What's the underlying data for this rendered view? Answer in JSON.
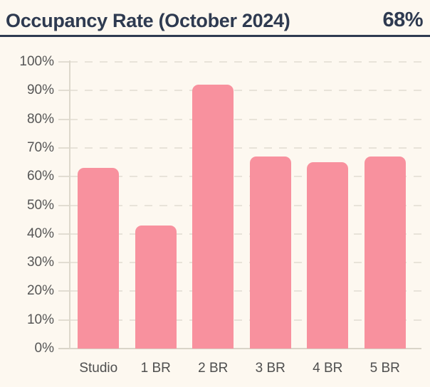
{
  "header": {
    "title": "Occupancy Rate (October 2024)",
    "value": "68%"
  },
  "colors": {
    "background": "#fdf8f0",
    "heading": "#2e3a50",
    "bar": "#f8919e",
    "grid": "#e8e3d9",
    "axis_line": "#ddd8cc",
    "axis_label": "#565656"
  },
  "chart_data": {
    "type": "bar",
    "title": "Occupancy Rate (October 2024)",
    "headline_value": "68%",
    "categories": [
      "Studio",
      "1 BR",
      "2 BR",
      "3 BR",
      "4 BR",
      "5 BR"
    ],
    "values": [
      63,
      43,
      92,
      67,
      65,
      67
    ],
    "xlabel": "",
    "ylabel": "",
    "ylim": [
      0,
      100
    ],
    "y_ticks": [
      0,
      10,
      20,
      30,
      40,
      50,
      60,
      70,
      80,
      90,
      100
    ],
    "y_tick_suffix": "%",
    "grid": "horizontal-dashed",
    "legend": "none",
    "bar_color": "#f8919e"
  }
}
